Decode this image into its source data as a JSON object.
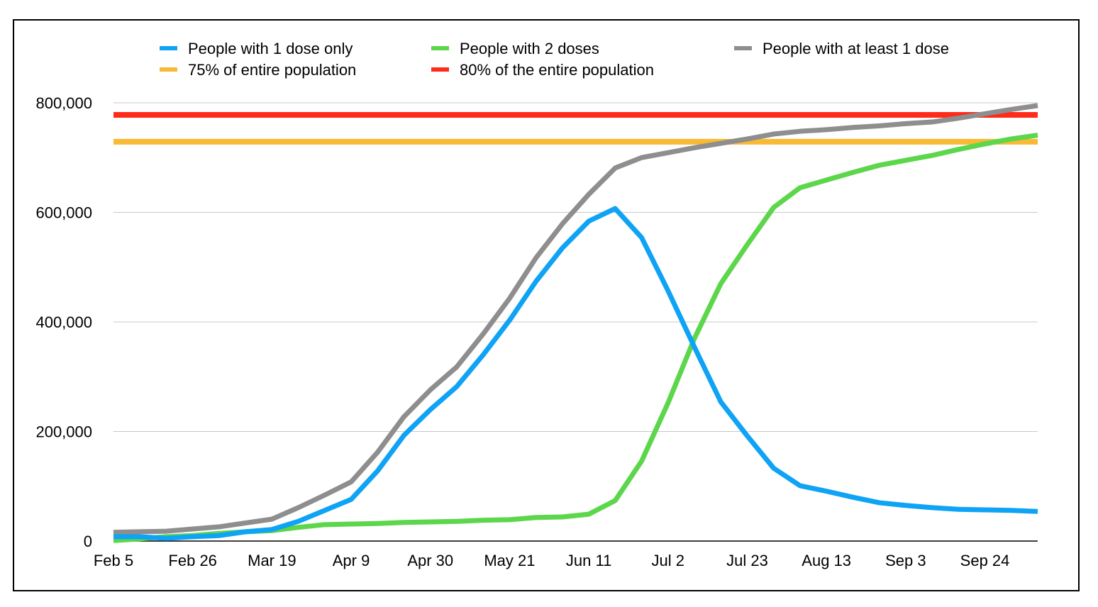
{
  "chart_data": {
    "type": "line",
    "title": "",
    "xlabel": "",
    "ylabel": "",
    "x_unit": "week index (weekly from Feb 5)",
    "x": [
      0,
      1,
      2,
      3,
      4,
      5,
      6,
      7,
      8,
      9,
      10,
      11,
      12,
      13,
      14,
      15,
      16,
      17,
      18,
      19,
      20,
      21,
      22,
      23,
      24,
      25,
      26,
      27,
      28,
      29,
      30,
      31,
      32,
      33,
      34,
      35
    ],
    "x_ticks": [
      {
        "x": 0,
        "label": "Feb 5"
      },
      {
        "x": 3,
        "label": "Feb 26"
      },
      {
        "x": 6,
        "label": "Mar 19"
      },
      {
        "x": 9,
        "label": "Apr 9"
      },
      {
        "x": 12,
        "label": "Apr 30"
      },
      {
        "x": 15,
        "label": "May 21"
      },
      {
        "x": 18,
        "label": "Jun 11"
      },
      {
        "x": 21,
        "label": "Jul 2"
      },
      {
        "x": 24,
        "label": "Jul 23"
      },
      {
        "x": 27,
        "label": "Aug 13"
      },
      {
        "x": 30,
        "label": "Sep 3"
      },
      {
        "x": 33,
        "label": "Sep 24"
      }
    ],
    "ylim": [
      0,
      800000
    ],
    "y_ticks": [
      {
        "y": 0,
        "label": "0"
      },
      {
        "y": 200000,
        "label": "200,000"
      },
      {
        "y": 400000,
        "label": "400,000"
      },
      {
        "y": 600000,
        "label": "600,000"
      },
      {
        "y": 800000,
        "label": "800,000"
      }
    ],
    "grid": true,
    "legend_placement": "top",
    "series": [
      {
        "name": "People with 1 dose only",
        "color": "#0fa3f5",
        "values": [
          8000,
          8000,
          5000,
          8000,
          10000,
          17000,
          21000,
          36000,
          56000,
          76000,
          128000,
          193000,
          240000,
          282000,
          340000,
          403000,
          474000,
          535000,
          584000,
          607000,
          554000,
          457000,
          354000,
          254000,
          192000,
          133000,
          101000,
          91000,
          80000,
          70000,
          65000,
          61000,
          58000,
          57000,
          56000,
          54000
        ]
      },
      {
        "name": "People with 2 doses",
        "color": "#5cd64a",
        "values": [
          1000,
          4000,
          8000,
          10000,
          14000,
          17000,
          19000,
          25000,
          30000,
          31000,
          32000,
          34000,
          35000,
          36000,
          38000,
          39000,
          43000,
          44000,
          49000,
          74000,
          146000,
          252000,
          370000,
          470000,
          541000,
          609000,
          645000,
          659000,
          673000,
          686000,
          695000,
          704000,
          715000,
          725000,
          734000,
          741000
        ]
      },
      {
        "name": "People with at least 1 dose",
        "color": "#8e8e8e",
        "values": [
          16000,
          17000,
          18000,
          22000,
          26000,
          33000,
          40000,
          61000,
          84000,
          108000,
          162000,
          227000,
          276000,
          318000,
          378000,
          443000,
          517000,
          579000,
          633000,
          681000,
          700000,
          709000,
          718000,
          726000,
          734000,
          743000,
          748000,
          751000,
          755000,
          758000,
          762000,
          765000,
          772000,
          780000,
          788000,
          795000
        ]
      },
      {
        "name": "75% of entire population",
        "color": "#f8b934",
        "constant": 729000
      },
      {
        "name": "80% of the entire population",
        "color": "#ff2a1a",
        "constant": 778000
      }
    ]
  }
}
